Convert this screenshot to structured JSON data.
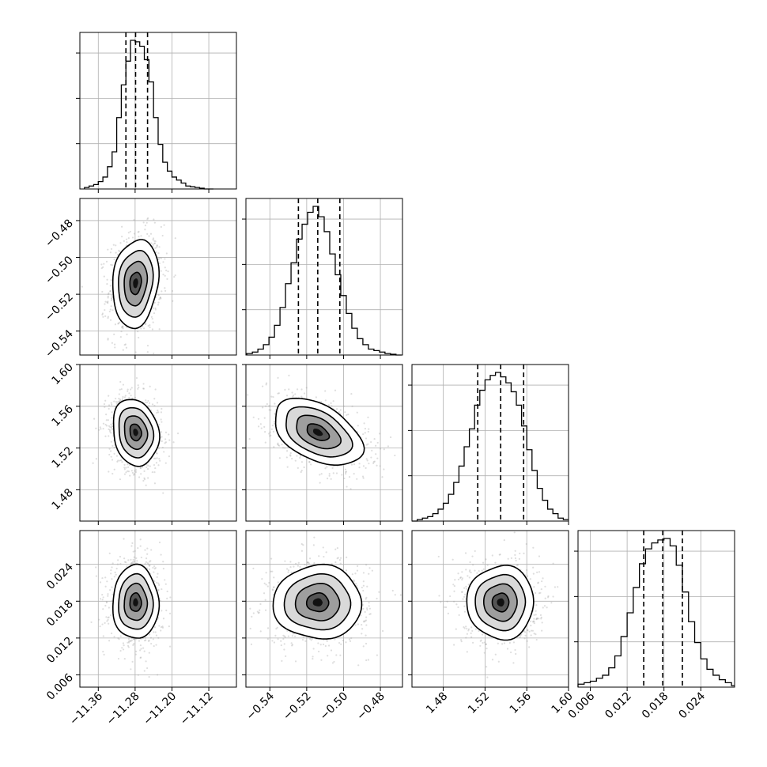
{
  "chart_data": {
    "type": "corner",
    "params": [
      {
        "range": [
          -11.4,
          -11.06
        ],
        "ticks": [
          "−11.36",
          "−11.28",
          "−11.20",
          "−11.12"
        ],
        "tick_values": [
          -11.36,
          -11.28,
          -11.2,
          -11.12
        ],
        "quantiles": [
          -11.3,
          -11.279,
          -11.253
        ],
        "hist_bins_center": [
          -11.385,
          -11.375,
          -11.365,
          -11.355,
          -11.345,
          -11.335,
          -11.325,
          -11.315,
          -11.305,
          -11.295,
          -11.285,
          -11.275,
          -11.265,
          -11.255,
          -11.245,
          -11.235,
          -11.225,
          -11.215,
          -11.205,
          -11.195,
          -11.185,
          -11.175,
          -11.165,
          -11.155,
          -11.145,
          -11.135,
          -11.125,
          -11.115
        ],
        "hist_counts": [
          0.01,
          0.02,
          0.03,
          0.05,
          0.08,
          0.15,
          0.25,
          0.48,
          0.7,
          0.86,
          1.0,
          0.99,
          0.96,
          0.87,
          0.72,
          0.48,
          0.3,
          0.18,
          0.12,
          0.08,
          0.06,
          0.04,
          0.02,
          0.015,
          0.01,
          0.005,
          0.0,
          0.0
        ]
      },
      {
        "range": [
          -0.553,
          -0.468
        ],
        "ticks": [
          "−0.54",
          "−0.52",
          "−0.50",
          "−0.48"
        ],
        "tick_values": [
          -0.54,
          -0.52,
          -0.5,
          -0.48
        ],
        "quantiles": [
          -0.5245,
          -0.514,
          -0.502
        ],
        "hist_bins_center": [
          -0.551,
          -0.548,
          -0.545,
          -0.542,
          -0.539,
          -0.536,
          -0.533,
          -0.53,
          -0.527,
          -0.524,
          -0.521,
          -0.518,
          -0.515,
          -0.512,
          -0.509,
          -0.506,
          -0.503,
          -0.5,
          -0.497,
          -0.494,
          -0.491,
          -0.488,
          -0.485,
          -0.482,
          -0.479,
          -0.476,
          -0.473,
          -0.47
        ],
        "hist_counts": [
          0.01,
          0.02,
          0.04,
          0.07,
          0.12,
          0.2,
          0.32,
          0.48,
          0.62,
          0.78,
          0.88,
          0.96,
          1.0,
          0.93,
          0.83,
          0.68,
          0.54,
          0.4,
          0.28,
          0.18,
          0.11,
          0.07,
          0.04,
          0.03,
          0.02,
          0.01,
          0.005,
          0.0
        ]
      },
      {
        "range": [
          1.45,
          1.6
        ],
        "ticks": [
          "1.48",
          "1.52",
          "1.56",
          "1.60"
        ],
        "tick_values": [
          1.48,
          1.52,
          1.56,
          1.6
        ],
        "quantiles": [
          1.513,
          1.535,
          1.557
        ],
        "hist_bins_center": [
          1.4525,
          1.4575,
          1.4625,
          1.4675,
          1.4725,
          1.4775,
          1.4825,
          1.4875,
          1.4925,
          1.4975,
          1.5025,
          1.5075,
          1.5125,
          1.5175,
          1.5225,
          1.5275,
          1.5325,
          1.5375,
          1.5425,
          1.5475,
          1.5525,
          1.5575,
          1.5625,
          1.5675,
          1.5725,
          1.5775,
          1.5825,
          1.5875,
          1.5925,
          1.5975
        ],
        "hist_counts": [
          0.0,
          0.01,
          0.02,
          0.03,
          0.05,
          0.08,
          0.12,
          0.18,
          0.26,
          0.37,
          0.5,
          0.62,
          0.78,
          0.88,
          0.95,
          0.98,
          1.0,
          0.97,
          0.93,
          0.87,
          0.78,
          0.64,
          0.48,
          0.34,
          0.22,
          0.14,
          0.08,
          0.05,
          0.02,
          0.01
        ]
      },
      {
        "range": [
          0.004,
          0.0295
        ],
        "ticks": [
          "0.006",
          "0.012",
          "0.018",
          "0.024"
        ],
        "tick_values": [
          0.006,
          0.012,
          0.018,
          0.024
        ],
        "quantiles": [
          0.0147,
          0.0178,
          0.021
        ],
        "hist_bins_center": [
          0.0045,
          0.0055,
          0.0065,
          0.0075,
          0.0085,
          0.0095,
          0.0105,
          0.0115,
          0.0125,
          0.0135,
          0.0145,
          0.0155,
          0.0165,
          0.0175,
          0.0185,
          0.0195,
          0.0205,
          0.0215,
          0.0225,
          0.0235,
          0.0245,
          0.0255,
          0.0265,
          0.0275,
          0.0285,
          0.0295
        ],
        "hist_counts": [
          0.02,
          0.03,
          0.04,
          0.06,
          0.08,
          0.13,
          0.21,
          0.34,
          0.5,
          0.67,
          0.83,
          0.93,
          0.97,
          0.99,
          1.0,
          0.95,
          0.82,
          0.64,
          0.44,
          0.3,
          0.19,
          0.12,
          0.08,
          0.05,
          0.03,
          0.01
        ]
      }
    ],
    "pairs": [
      {
        "row": 1,
        "col": 0,
        "mean": [
          -11.279,
          -0.514
        ],
        "sd": [
          0.025,
          0.012
        ],
        "corr": 0.15
      },
      {
        "row": 2,
        "col": 0,
        "mean": [
          -11.279,
          1.535
        ],
        "sd": [
          0.025,
          0.016
        ],
        "corr": -0.15
      },
      {
        "row": 2,
        "col": 1,
        "mean": [
          -0.514,
          1.535
        ],
        "sd": [
          0.012,
          0.016
        ],
        "corr": -0.45
      },
      {
        "row": 3,
        "col": 0,
        "mean": [
          -11.279,
          0.0178
        ],
        "sd": [
          0.025,
          0.003
        ],
        "corr": 0.0
      },
      {
        "row": 3,
        "col": 1,
        "mean": [
          -0.514,
          0.0178
        ],
        "sd": [
          0.012,
          0.003
        ],
        "corr": 0.0
      },
      {
        "row": 3,
        "col": 2,
        "mean": [
          1.535,
          0.0178
        ],
        "sd": [
          0.016,
          0.003
        ],
        "corr": 0.0
      }
    ],
    "contour_levels_sigma": [
      0.5,
      1.0,
      1.5,
      2.0
    ],
    "grid": true,
    "quantile_line_style": "dashed",
    "scatter_color": "#a0a0a0"
  }
}
